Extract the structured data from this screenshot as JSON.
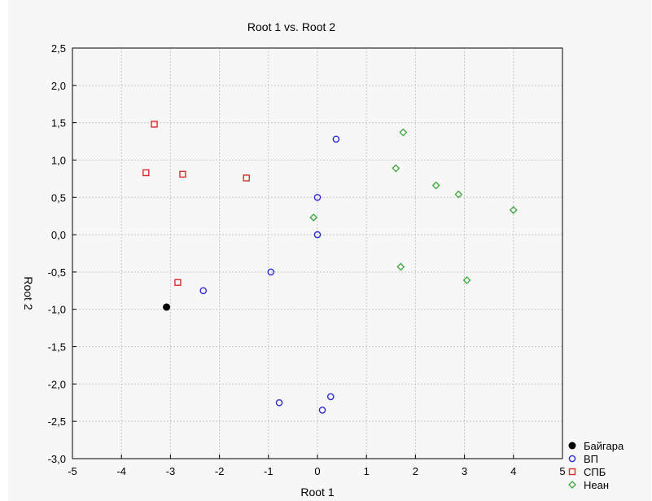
{
  "chart_data": {
    "type": "scatter",
    "title": "Root 1 vs. Root 2",
    "xlabel": "Root 1",
    "ylabel": "Root 2",
    "xlim": [
      -5,
      5
    ],
    "ylim": [
      -3.0,
      2.5
    ],
    "x_ticks": [
      "-5",
      "-4",
      "-3",
      "-2",
      "-1",
      "0",
      "1",
      "2",
      "3",
      "4",
      "5"
    ],
    "y_ticks": [
      "-3,0",
      "-2,5",
      "-2,0",
      "-1,5",
      "-1,0",
      "-0,5",
      "0,0",
      "0,5",
      "1,0",
      "1,5",
      "2,0",
      "2,5"
    ],
    "grid": true,
    "legend_position": "bottom-right",
    "series": [
      {
        "name": "Байгара",
        "marker": "filled-circle",
        "color": "#000000",
        "points": [
          [
            -3.08,
            -0.97
          ]
        ]
      },
      {
        "name": "ВП",
        "marker": "circle",
        "color": "#2d2dd6",
        "points": [
          [
            0.38,
            1.28
          ],
          [
            0.0,
            0.5
          ],
          [
            0.0,
            0.0
          ],
          [
            -0.95,
            -0.5
          ],
          [
            -2.33,
            -0.75
          ],
          [
            -0.78,
            -2.25
          ],
          [
            0.27,
            -2.17
          ],
          [
            0.1,
            -2.35
          ]
        ]
      },
      {
        "name": "СПБ",
        "marker": "square",
        "color": "#d62d2d",
        "points": [
          [
            -3.33,
            1.48
          ],
          [
            -3.5,
            0.83
          ],
          [
            -2.75,
            0.81
          ],
          [
            -1.45,
            0.76
          ],
          [
            -2.85,
            -0.64
          ]
        ]
      },
      {
        "name": "Неан",
        "marker": "diamond",
        "color": "#3aa83a",
        "points": [
          [
            1.75,
            1.37
          ],
          [
            1.6,
            0.89
          ],
          [
            2.42,
            0.66
          ],
          [
            2.88,
            0.54
          ],
          [
            4.0,
            0.33
          ],
          [
            -0.08,
            0.23
          ],
          [
            1.7,
            -0.43
          ],
          [
            3.05,
            -0.61
          ]
        ]
      }
    ]
  }
}
